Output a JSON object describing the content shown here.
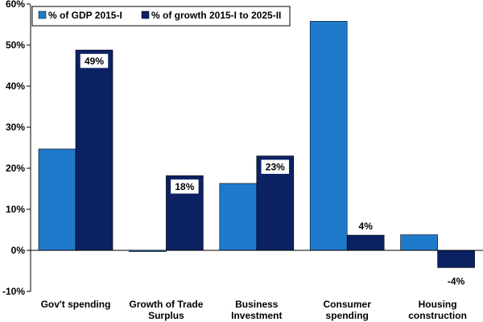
{
  "chart_data": {
    "type": "bar",
    "title": "",
    "xlabel": "",
    "ylabel": "",
    "ylim": [
      -10,
      60
    ],
    "yticks": [
      "-10%",
      "0%",
      "10%",
      "20%",
      "30%",
      "40%",
      "50%",
      "60%"
    ],
    "ytick_values": [
      -10,
      0,
      10,
      20,
      30,
      40,
      50,
      60
    ],
    "categories": [
      [
        "Gov't spending"
      ],
      [
        "Growth of Trade",
        "Surplus"
      ],
      [
        "Business",
        "Investment"
      ],
      [
        "Consumer",
        "spending"
      ],
      [
        "Housing",
        "construction"
      ]
    ],
    "series": [
      {
        "name": "% of GDP 2015-I",
        "color": "#1f7acb",
        "values": [
          24.7,
          -0.3,
          16.3,
          55.8,
          3.8
        ],
        "labels": [
          "",
          "",
          "",
          "",
          ""
        ]
      },
      {
        "name": "% of growth 2015-I to 2025-II",
        "color": "#0b2162",
        "values": [
          48.8,
          18.2,
          23.0,
          3.7,
          -4.2
        ],
        "labels": [
          "49%",
          "18%",
          "23%",
          "4%",
          "-4%"
        ]
      }
    ],
    "legend_position": "top-left",
    "grid": false
  }
}
